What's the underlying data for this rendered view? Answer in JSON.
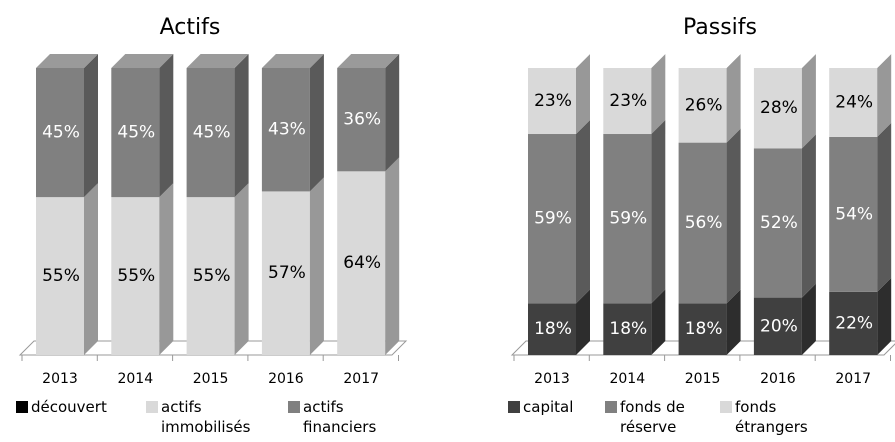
{
  "chart_data": [
    {
      "type": "bar3d",
      "title": "Actifs",
      "stacked": true,
      "categories": [
        "2013",
        "2014",
        "2015",
        "2016",
        "2017"
      ],
      "ylim": [
        0,
        100
      ],
      "series": [
        {
          "name": "découvert",
          "color": "#000000",
          "values": [
            0,
            0,
            0,
            0,
            0
          ]
        },
        {
          "name": "actifs immobilisés",
          "color": "#d9d9d9",
          "values": [
            55,
            55,
            55,
            57,
            64
          ],
          "value_labels": [
            "55%",
            "55%",
            "55%",
            "57%",
            "64%"
          ]
        },
        {
          "name": "actifs financiers",
          "color": "#808080",
          "values": [
            45,
            45,
            45,
            43,
            36
          ],
          "value_labels": [
            "45%",
            "45%",
            "45%",
            "43%",
            "36%"
          ]
        }
      ]
    },
    {
      "type": "bar3d",
      "title": "Passifs",
      "stacked": true,
      "categories": [
        "2013",
        "2014",
        "2015",
        "2016",
        "2017"
      ],
      "ylim": [
        0,
        100
      ],
      "series": [
        {
          "name": "capital",
          "color": "#404040",
          "values": [
            18,
            18,
            18,
            20,
            22
          ],
          "value_labels": [
            "18%",
            "18%",
            "18%",
            "20%",
            "22%"
          ]
        },
        {
          "name": "fonds de réserve",
          "color": "#808080",
          "values": [
            59,
            59,
            56,
            52,
            54
          ],
          "value_labels": [
            "59%",
            "59%",
            "56%",
            "52%",
            "54%"
          ]
        },
        {
          "name": "fonds étrangers",
          "color": "#d9d9d9",
          "values": [
            23,
            23,
            26,
            28,
            24
          ],
          "value_labels": [
            "23%",
            "23%",
            "26%",
            "28%",
            "24%"
          ]
        }
      ]
    }
  ]
}
